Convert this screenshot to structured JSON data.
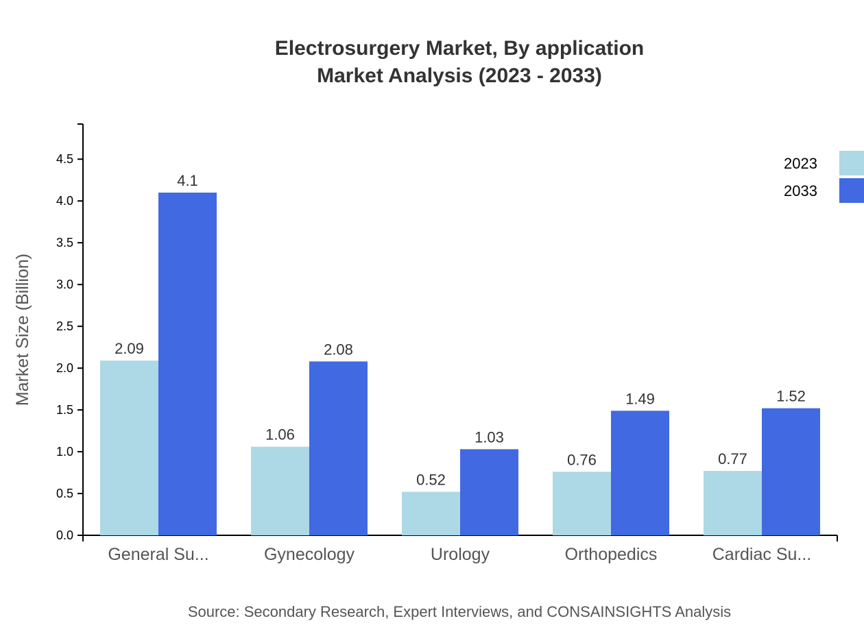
{
  "chart_data": {
    "type": "bar",
    "title": "Electrosurgery Market, By application",
    "subtitle": "Market Analysis (2023 - 2033)",
    "xlabel": "",
    "ylabel": "Market Size (Billion)",
    "ylim": [
      0,
      4.92
    ],
    "yticks": [
      "0.0",
      "0.5",
      "1.0",
      "1.5",
      "2.0",
      "2.5",
      "3.0",
      "3.5",
      "4.0",
      "4.5"
    ],
    "categories": [
      "General Su...",
      "Gynecology",
      "Urology",
      "Orthopedics",
      "Cardiac Su..."
    ],
    "series": [
      {
        "name": "2023",
        "color": "#add8e6",
        "values": [
          2.09,
          1.06,
          0.52,
          0.76,
          0.77
        ],
        "labels": [
          "2.09",
          "1.06",
          "0.52",
          "0.76",
          "0.77"
        ]
      },
      {
        "name": "2033",
        "color": "#4169e1",
        "values": [
          4.1,
          2.08,
          1.03,
          1.49,
          1.52
        ],
        "labels": [
          "4.1",
          "2.08",
          "1.03",
          "1.49",
          "1.52"
        ]
      }
    ],
    "grid": false,
    "legend": "top-right",
    "source": "Source: Secondary Research, Expert Interviews, and CONSAINSIGHTS Analysis"
  }
}
